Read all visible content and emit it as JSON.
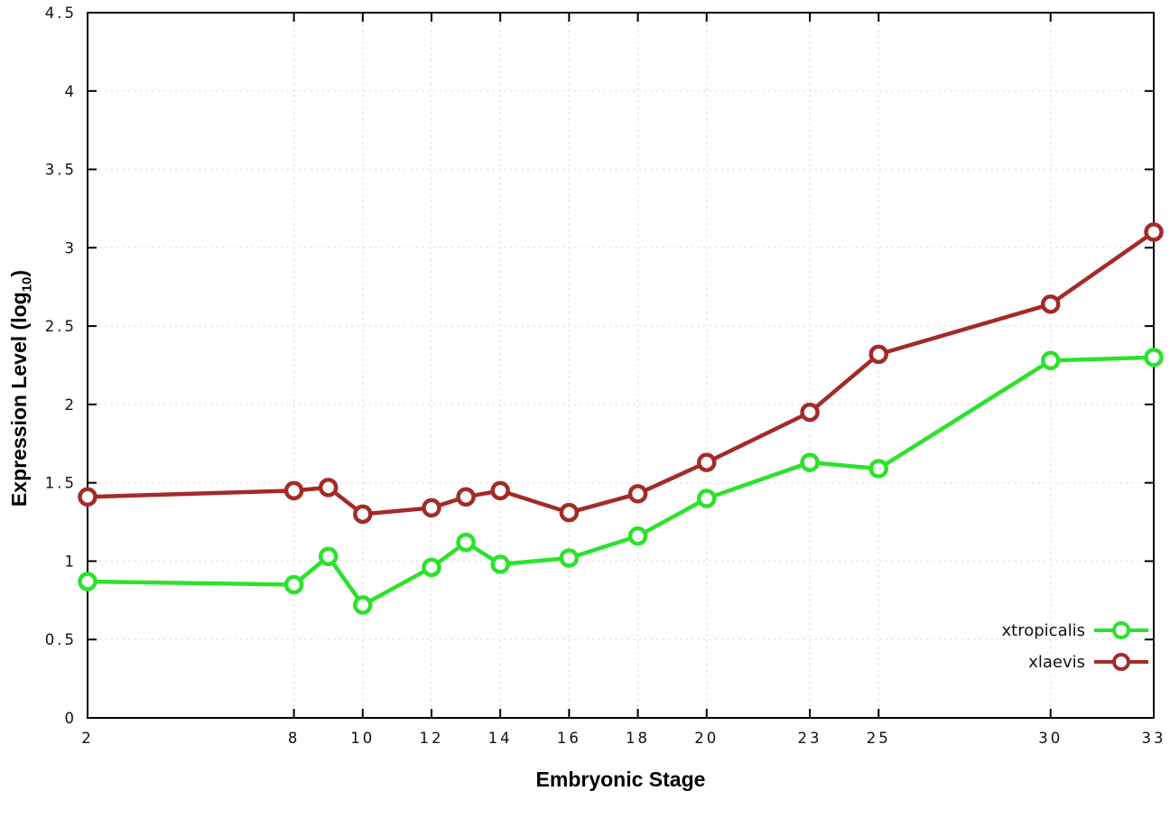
{
  "chart_data": {
    "type": "line",
    "title": "",
    "xlabel": "Embryonic Stage",
    "ylabel": "Expression Level (log10)",
    "ylabel_parts": {
      "prefix": "Expression Level (log",
      "sub": "10",
      "suffix": ")"
    },
    "x": [
      2,
      8,
      9,
      10,
      12,
      13,
      14,
      16,
      18,
      20,
      23,
      25,
      30,
      33
    ],
    "series": [
      {
        "name": "xtropicalis",
        "color": "#2be22b",
        "values": [
          0.87,
          0.85,
          1.03,
          0.72,
          0.96,
          1.12,
          0.98,
          1.02,
          1.16,
          1.4,
          1.63,
          1.59,
          2.28,
          2.3
        ]
      },
      {
        "name": "xlaevis",
        "color": "#a42a28",
        "values": [
          1.41,
          1.45,
          1.47,
          1.3,
          1.34,
          1.41,
          1.45,
          1.31,
          1.43,
          1.63,
          1.95,
          2.32,
          2.64,
          3.1
        ]
      }
    ],
    "xlim": [
      2,
      33
    ],
    "ylim": [
      0,
      4.5
    ],
    "xticks": [
      2,
      8,
      10,
      12,
      14,
      16,
      18,
      20,
      23,
      25,
      30,
      33
    ],
    "yticks": [
      0,
      0.5,
      1,
      1.5,
      2,
      2.5,
      3,
      3.5,
      4,
      4.5
    ],
    "ytick_labels": [
      "0",
      "0.5",
      "1",
      "1.5",
      "2",
      "2.5",
      "3",
      "3.5",
      "4",
      "4.5"
    ],
    "grid": true,
    "legend_position": "bottom-right",
    "colors": {
      "background": "#ffffff",
      "grid": "#d9d9d9",
      "axis": "#000000",
      "marker_fill": "#ffffff"
    }
  }
}
